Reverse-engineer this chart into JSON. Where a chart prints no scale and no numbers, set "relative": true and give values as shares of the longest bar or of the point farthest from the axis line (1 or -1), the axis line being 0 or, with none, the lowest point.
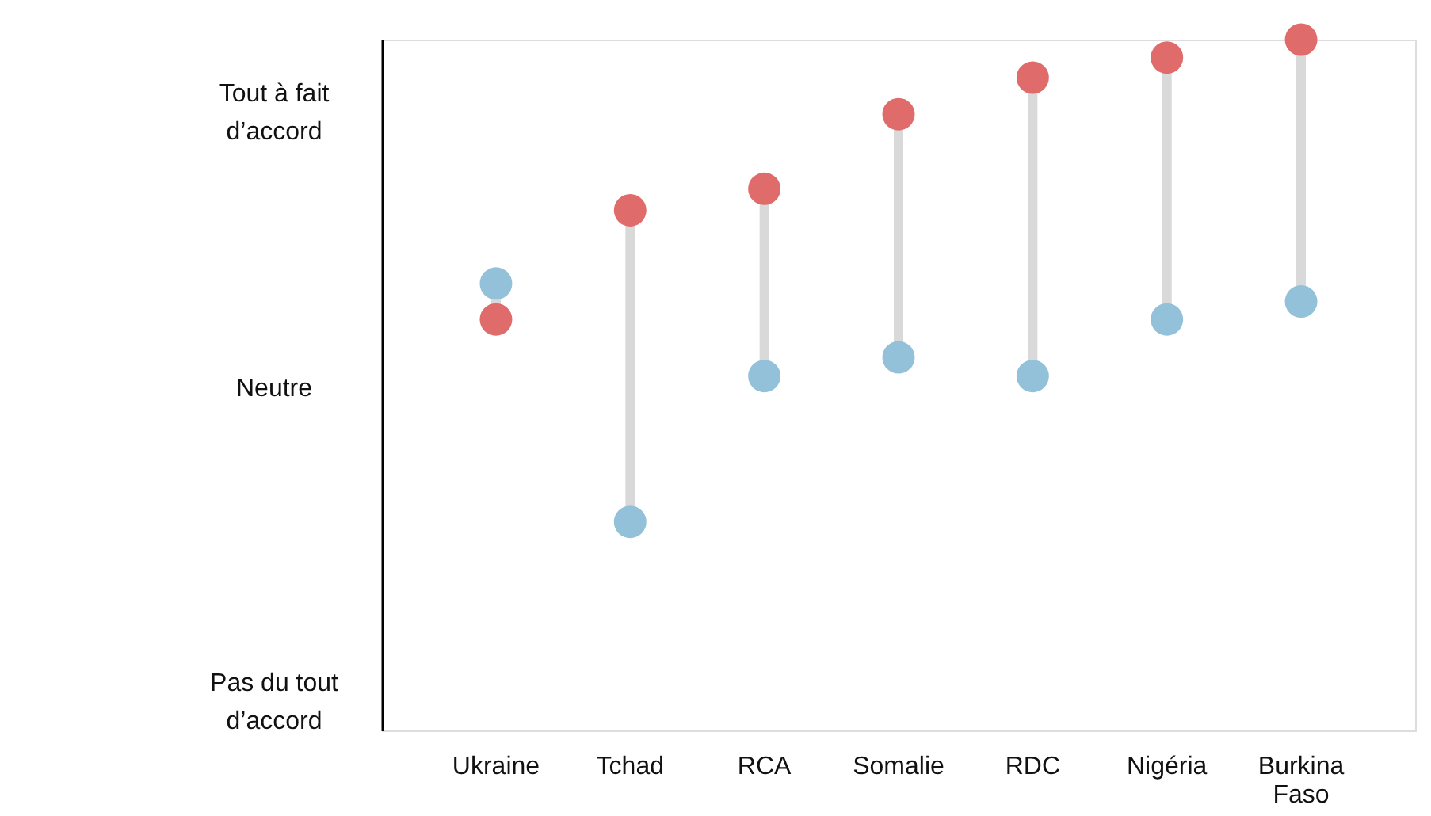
{
  "chart_data": {
    "type": "scatter",
    "relative": true,
    "categories": [
      "Ukraine",
      "Tchad",
      "RCA",
      "Somalie",
      "RDC",
      "Nigéria",
      "Burkina Faso"
    ],
    "series": [
      {
        "color": "#93c1da",
        "values": [
          0.647,
          0.302,
          0.513,
          0.54,
          0.513,
          0.595,
          0.621
        ]
      },
      {
        "color": "#e06b6b",
        "values": [
          0.595,
          0.753,
          0.784,
          0.892,
          0.945,
          0.974,
          1
        ]
      }
    ],
    "annotations": [
      "Tout à fait d’accord",
      "Neutre",
      "Pas du tout d’accord"
    ],
    "grid": false,
    "legend": false,
    "marker": "circle"
  }
}
